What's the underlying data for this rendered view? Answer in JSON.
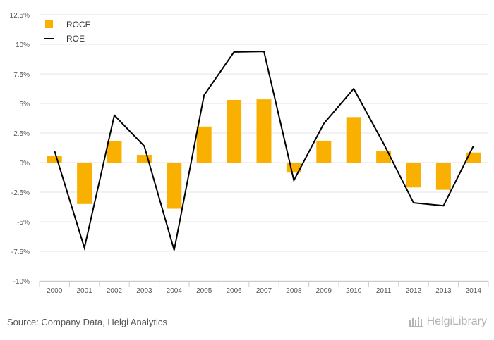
{
  "chart_data": {
    "type": "bar",
    "categories": [
      "2000",
      "2001",
      "2002",
      "2003",
      "2004",
      "2005",
      "2006",
      "2007",
      "2008",
      "2009",
      "2010",
      "2011",
      "2012",
      "2013",
      "2014"
    ],
    "series": [
      {
        "name": "ROCE",
        "kind": "bar",
        "color": "#f9b000",
        "values": [
          0.55,
          -3.5,
          1.8,
          0.65,
          -3.9,
          3.05,
          5.3,
          5.35,
          -0.85,
          1.85,
          3.85,
          0.95,
          -2.1,
          -2.3,
          0.85
        ]
      },
      {
        "name": "ROE",
        "kind": "line",
        "color": "#000000",
        "values": [
          1.0,
          -7.2,
          4.0,
          1.4,
          -7.4,
          5.7,
          9.35,
          9.4,
          -1.5,
          3.3,
          6.25,
          1.6,
          -3.4,
          -3.65,
          1.4
        ]
      }
    ],
    "yticks": [
      "-10%",
      "-7.5%",
      "-5%",
      "-2.5%",
      "0%",
      "2.5%",
      "5%",
      "7.5%",
      "10%",
      "12.5%"
    ],
    "ylim": [
      -10,
      12.5
    ],
    "grid": true,
    "legend_position": "top-left",
    "xlabel": "",
    "ylabel": "",
    "title": ""
  },
  "footer": {
    "source": "Source: Company Data, Helgi Analytics"
  },
  "brand": {
    "name": "HelgiLibrary"
  }
}
